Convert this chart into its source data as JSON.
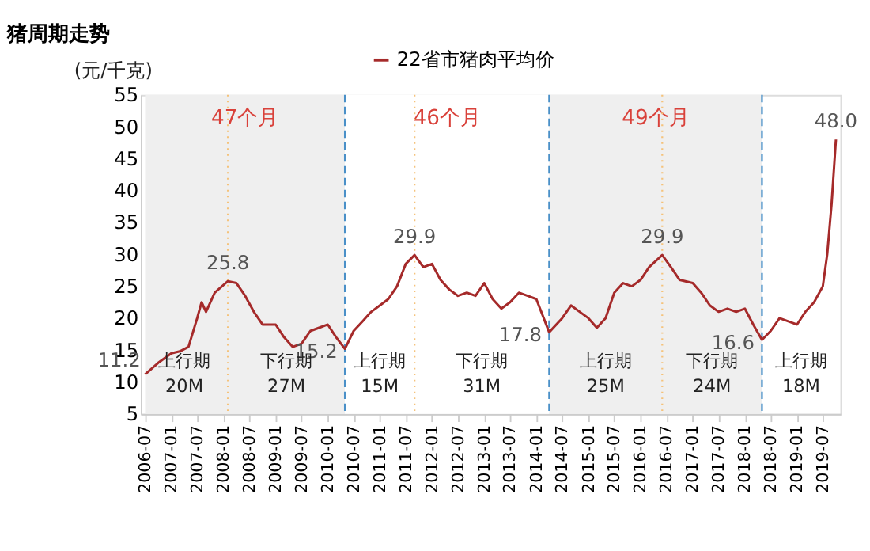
{
  "chart_data": {
    "type": "line",
    "title": "猪周期走势",
    "ylabel": "(元/千克)",
    "x": [
      "2006-07",
      "2006-10",
      "2007-01",
      "2007-03",
      "2007-05",
      "2007-07",
      "2007-08",
      "2007-09",
      "2007-11",
      "2008-02",
      "2008-04",
      "2008-06",
      "2008-08",
      "2008-10",
      "2009-01",
      "2009-03",
      "2009-05",
      "2009-07",
      "2009-09",
      "2009-11",
      "2010-01",
      "2010-03",
      "2010-05",
      "2010-07",
      "2010-09",
      "2010-11",
      "2011-01",
      "2011-03",
      "2011-05",
      "2011-07",
      "2011-09",
      "2011-11",
      "2012-01",
      "2012-03",
      "2012-05",
      "2012-07",
      "2012-09",
      "2012-11",
      "2013-01",
      "2013-03",
      "2013-05",
      "2013-07",
      "2013-09",
      "2013-11",
      "2014-01",
      "2014-04",
      "2014-07",
      "2014-09",
      "2014-11",
      "2015-01",
      "2015-03",
      "2015-05",
      "2015-07",
      "2015-09",
      "2015-11",
      "2016-01",
      "2016-03",
      "2016-06",
      "2016-08",
      "2016-10",
      "2017-01",
      "2017-03",
      "2017-05",
      "2017-07",
      "2017-09",
      "2017-11",
      "2018-01",
      "2018-03",
      "2018-05",
      "2018-07",
      "2018-09",
      "2018-11",
      "2019-01",
      "2019-03",
      "2019-05",
      "2019-07",
      "2019-08",
      "2019-09",
      "2019-10"
    ],
    "series": [
      {
        "name": "22省市猪肉平均价",
        "color": "#a52a2a",
        "values": [
          11.2,
          13,
          14.5,
          14.8,
          15.5,
          20,
          22.5,
          21,
          24,
          25.8,
          25.5,
          23.5,
          21,
          19,
          19,
          17,
          15.5,
          16,
          18,
          18.5,
          19,
          17,
          15.2,
          18,
          19.5,
          21,
          22,
          23,
          25,
          28.5,
          29.9,
          28,
          28.5,
          26,
          24.5,
          23.5,
          24,
          23.5,
          25.5,
          23,
          21.5,
          22.5,
          24,
          23.5,
          23,
          17.8,
          20,
          22,
          21,
          20,
          18.5,
          20,
          24,
          25.5,
          25,
          26,
          28,
          29.9,
          28,
          26,
          25.5,
          24,
          22,
          21,
          21.5,
          21,
          21.5,
          19,
          16.6,
          18,
          20,
          19.5,
          19,
          21,
          22.5,
          25,
          30,
          38,
          48.0
        ],
        "value_labels": [
          "11.2",
          null,
          null,
          null,
          null,
          null,
          null,
          null,
          null,
          "25.8",
          null,
          null,
          null,
          null,
          null,
          null,
          null,
          null,
          null,
          null,
          null,
          null,
          "15.2",
          null,
          null,
          null,
          null,
          null,
          null,
          null,
          "29.9",
          null,
          null,
          null,
          null,
          null,
          null,
          null,
          null,
          null,
          null,
          null,
          null,
          null,
          null,
          "17.8",
          null,
          null,
          null,
          null,
          null,
          null,
          null,
          null,
          null,
          null,
          null,
          "29.9",
          null,
          null,
          null,
          null,
          null,
          null,
          null,
          null,
          null,
          null,
          "16.6",
          null,
          null,
          null,
          null,
          null,
          null,
          null,
          null,
          null,
          "48.0"
        ]
      }
    ],
    "xlim": [
      "2006-06",
      "2019-11"
    ],
    "xticks": [
      "2006-07",
      "2007-01",
      "2007-07",
      "2008-01",
      "2008-07",
      "2009-01",
      "2009-07",
      "2010-01",
      "2010-07",
      "2011-01",
      "2011-07",
      "2012-01",
      "2012-07",
      "2013-01",
      "2013-07",
      "2014-01",
      "2014-07",
      "2015-01",
      "2015-07",
      "2016-01",
      "2016-07",
      "2017-01",
      "2017-07",
      "2018-01",
      "2018-07",
      "2019-01",
      "2019-07"
    ],
    "ylim": [
      5,
      55
    ],
    "yticks": [
      5,
      10,
      15,
      20,
      25,
      30,
      35,
      40,
      45,
      50,
      55
    ],
    "bands": [
      {
        "axis": "x",
        "from": "2006-07",
        "to": "2010-05",
        "label": "47个月",
        "color": "#efefef"
      },
      {
        "axis": "x",
        "from": "2010-05",
        "to": "2014-04",
        "label": "46个月",
        "color": "#ffffff"
      },
      {
        "axis": "x",
        "from": "2014-04",
        "to": "2018-05",
        "label": "49个月",
        "color": "#efefef"
      }
    ],
    "ref_lines": [
      {
        "axis": "x",
        "value": "2010-05",
        "color": "#4a90c8",
        "line_style": "dashed"
      },
      {
        "axis": "x",
        "value": "2014-04",
        "color": "#4a90c8",
        "line_style": "dashed"
      },
      {
        "axis": "x",
        "value": "2018-05",
        "color": "#4a90c8",
        "line_style": "dashed"
      },
      {
        "axis": "x",
        "value": "2008-02",
        "color": "#f5c27a",
        "line_style": "dotted"
      },
      {
        "axis": "x",
        "value": "2011-09",
        "color": "#f5c27a",
        "line_style": "dotted"
      },
      {
        "axis": "x",
        "value": "2016-06",
        "color": "#f5c27a",
        "line_style": "dotted"
      }
    ],
    "annotations": [
      "上行期",
      "20M",
      "下行期",
      "27M",
      "上行期",
      "15M",
      "下行期",
      "31M",
      "上行期",
      "25M",
      "下行期",
      "24M",
      "上行期",
      "18M"
    ],
    "grid": false,
    "legend": "top",
    "line_style": "solid",
    "marker": "none"
  }
}
